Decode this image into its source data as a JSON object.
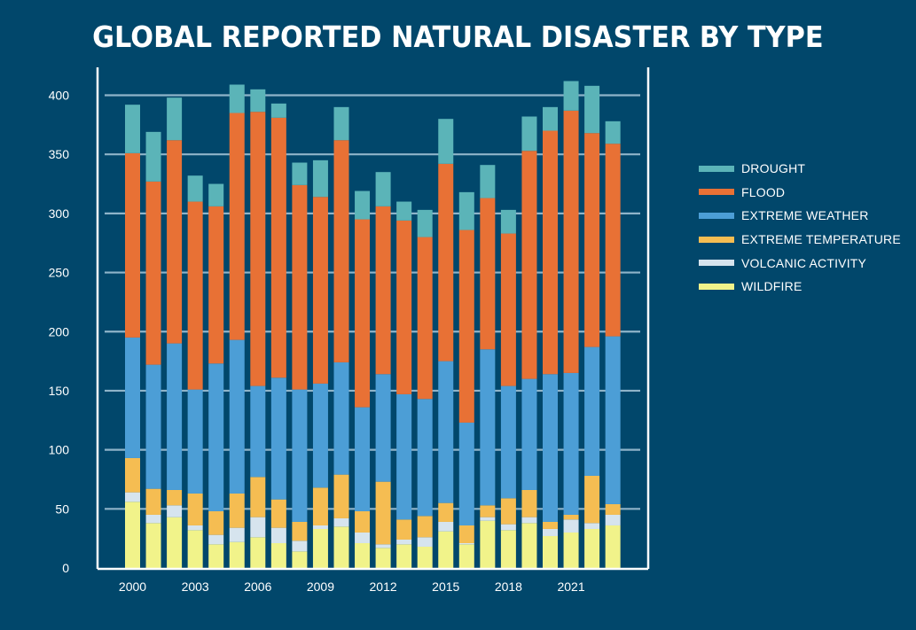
{
  "chart_data": {
    "type": "bar",
    "stacked": true,
    "title": "GLOBAL REPORTED NATURAL DISASTER BY TYPE",
    "xlabel": "",
    "ylabel": "",
    "ylim": [
      0,
      400
    ],
    "yticks": [
      0,
      50,
      100,
      150,
      200,
      250,
      300,
      350,
      400
    ],
    "grid": true,
    "legend_position": "right",
    "categories": [
      2000,
      2001,
      2002,
      2003,
      2004,
      2005,
      2006,
      2007,
      2008,
      2009,
      2010,
      2011,
      2012,
      2013,
      2014,
      2015,
      2016,
      2017,
      2018,
      2019,
      2020,
      2021,
      2022,
      2023
    ],
    "xtick_labels": [
      "2000",
      "2003",
      "2006",
      "2009",
      "2012",
      "2015",
      "2018",
      "2021"
    ],
    "series": [
      {
        "name": "WILDFIRE",
        "color": "#F1F38A",
        "values": [
          56,
          38,
          43,
          32,
          20,
          22,
          26,
          21,
          14,
          33,
          35,
          21,
          17,
          20,
          18,
          31,
          20,
          40,
          32,
          38,
          27,
          30,
          33,
          36
        ]
      },
      {
        "name": "VOLCANIC ACTIVITY",
        "color": "#D6E4EE",
        "values": [
          8,
          7,
          10,
          4,
          8,
          12,
          17,
          13,
          9,
          3,
          7,
          9,
          3,
          4,
          8,
          8,
          1,
          3,
          5,
          5,
          6,
          11,
          5,
          9
        ]
      },
      {
        "name": "EXTREME TEMPERATURE",
        "color": "#F5BD52",
        "values": [
          29,
          22,
          13,
          27,
          20,
          29,
          34,
          24,
          16,
          32,
          37,
          18,
          53,
          17,
          18,
          16,
          15,
          10,
          22,
          23,
          6,
          4,
          40,
          9
        ]
      },
      {
        "name": "EXTREME WEATHER",
        "color": "#4C9ED6",
        "values": [
          102,
          105,
          124,
          88,
          125,
          130,
          77,
          103,
          112,
          88,
          95,
          88,
          91,
          106,
          99,
          120,
          87,
          132,
          95,
          94,
          125,
          120,
          109,
          142
        ]
      },
      {
        "name": "FLOOD",
        "color": "#E87135",
        "values": [
          156,
          155,
          172,
          159,
          133,
          192,
          232,
          220,
          173,
          158,
          188,
          159,
          142,
          147,
          137,
          167,
          163,
          128,
          129,
          193,
          206,
          222,
          181,
          163
        ]
      },
      {
        "name": "DROUGHT",
        "color": "#5BB4B8",
        "values": [
          41,
          42,
          36,
          22,
          19,
          24,
          19,
          12,
          19,
          31,
          28,
          24,
          29,
          16,
          23,
          38,
          32,
          28,
          20,
          29,
          20,
          25,
          40,
          19
        ]
      }
    ],
    "legend_order": [
      "DROUGHT",
      "FLOOD",
      "EXTREME WEATHER",
      "EXTREME TEMPERATURE",
      "VOLCANIC ACTIVITY",
      "WILDFIRE"
    ]
  },
  "colors": {
    "background": "#01476B",
    "gridline": "#8FB4C9",
    "frame": "#FFFFFF",
    "text": "#FFFFFF"
  }
}
